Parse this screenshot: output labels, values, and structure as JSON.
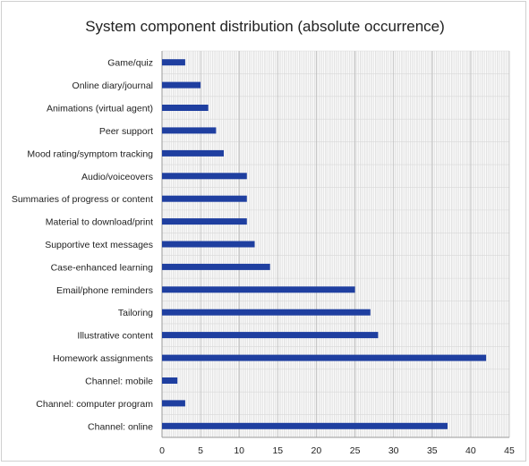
{
  "chart_data": {
    "type": "bar",
    "orientation": "horizontal",
    "title": "System component distribution (absolute occurrence)",
    "xlabel": "",
    "ylabel": "",
    "xlim": [
      0,
      45
    ],
    "x_ticks": [
      "0",
      "5",
      "10",
      "15",
      "20",
      "25",
      "30",
      "35",
      "40",
      "45"
    ],
    "grid": "minor gridlines (dense)",
    "legend": "none",
    "bar_color": "#1F3FA0",
    "categories": [
      "Game/quiz",
      "Online diary/journal",
      "Animations (virtual agent)",
      "Peer support",
      "Mood rating/symptom tracking",
      "Audio/voiceovers",
      "Summaries of progress or content",
      "Material to download/print",
      "Supportive text messages",
      "Case-enhanced learning",
      "Email/phone  reminders",
      "Tailoring",
      "Illustrative content",
      "Homework assignments",
      "Channel: mobile",
      "Channel: computer program",
      "Channel: online"
    ],
    "values": [
      3,
      5,
      6,
      7,
      8,
      11,
      11,
      11,
      12,
      14,
      25,
      27,
      28,
      42,
      2,
      3,
      37
    ]
  }
}
